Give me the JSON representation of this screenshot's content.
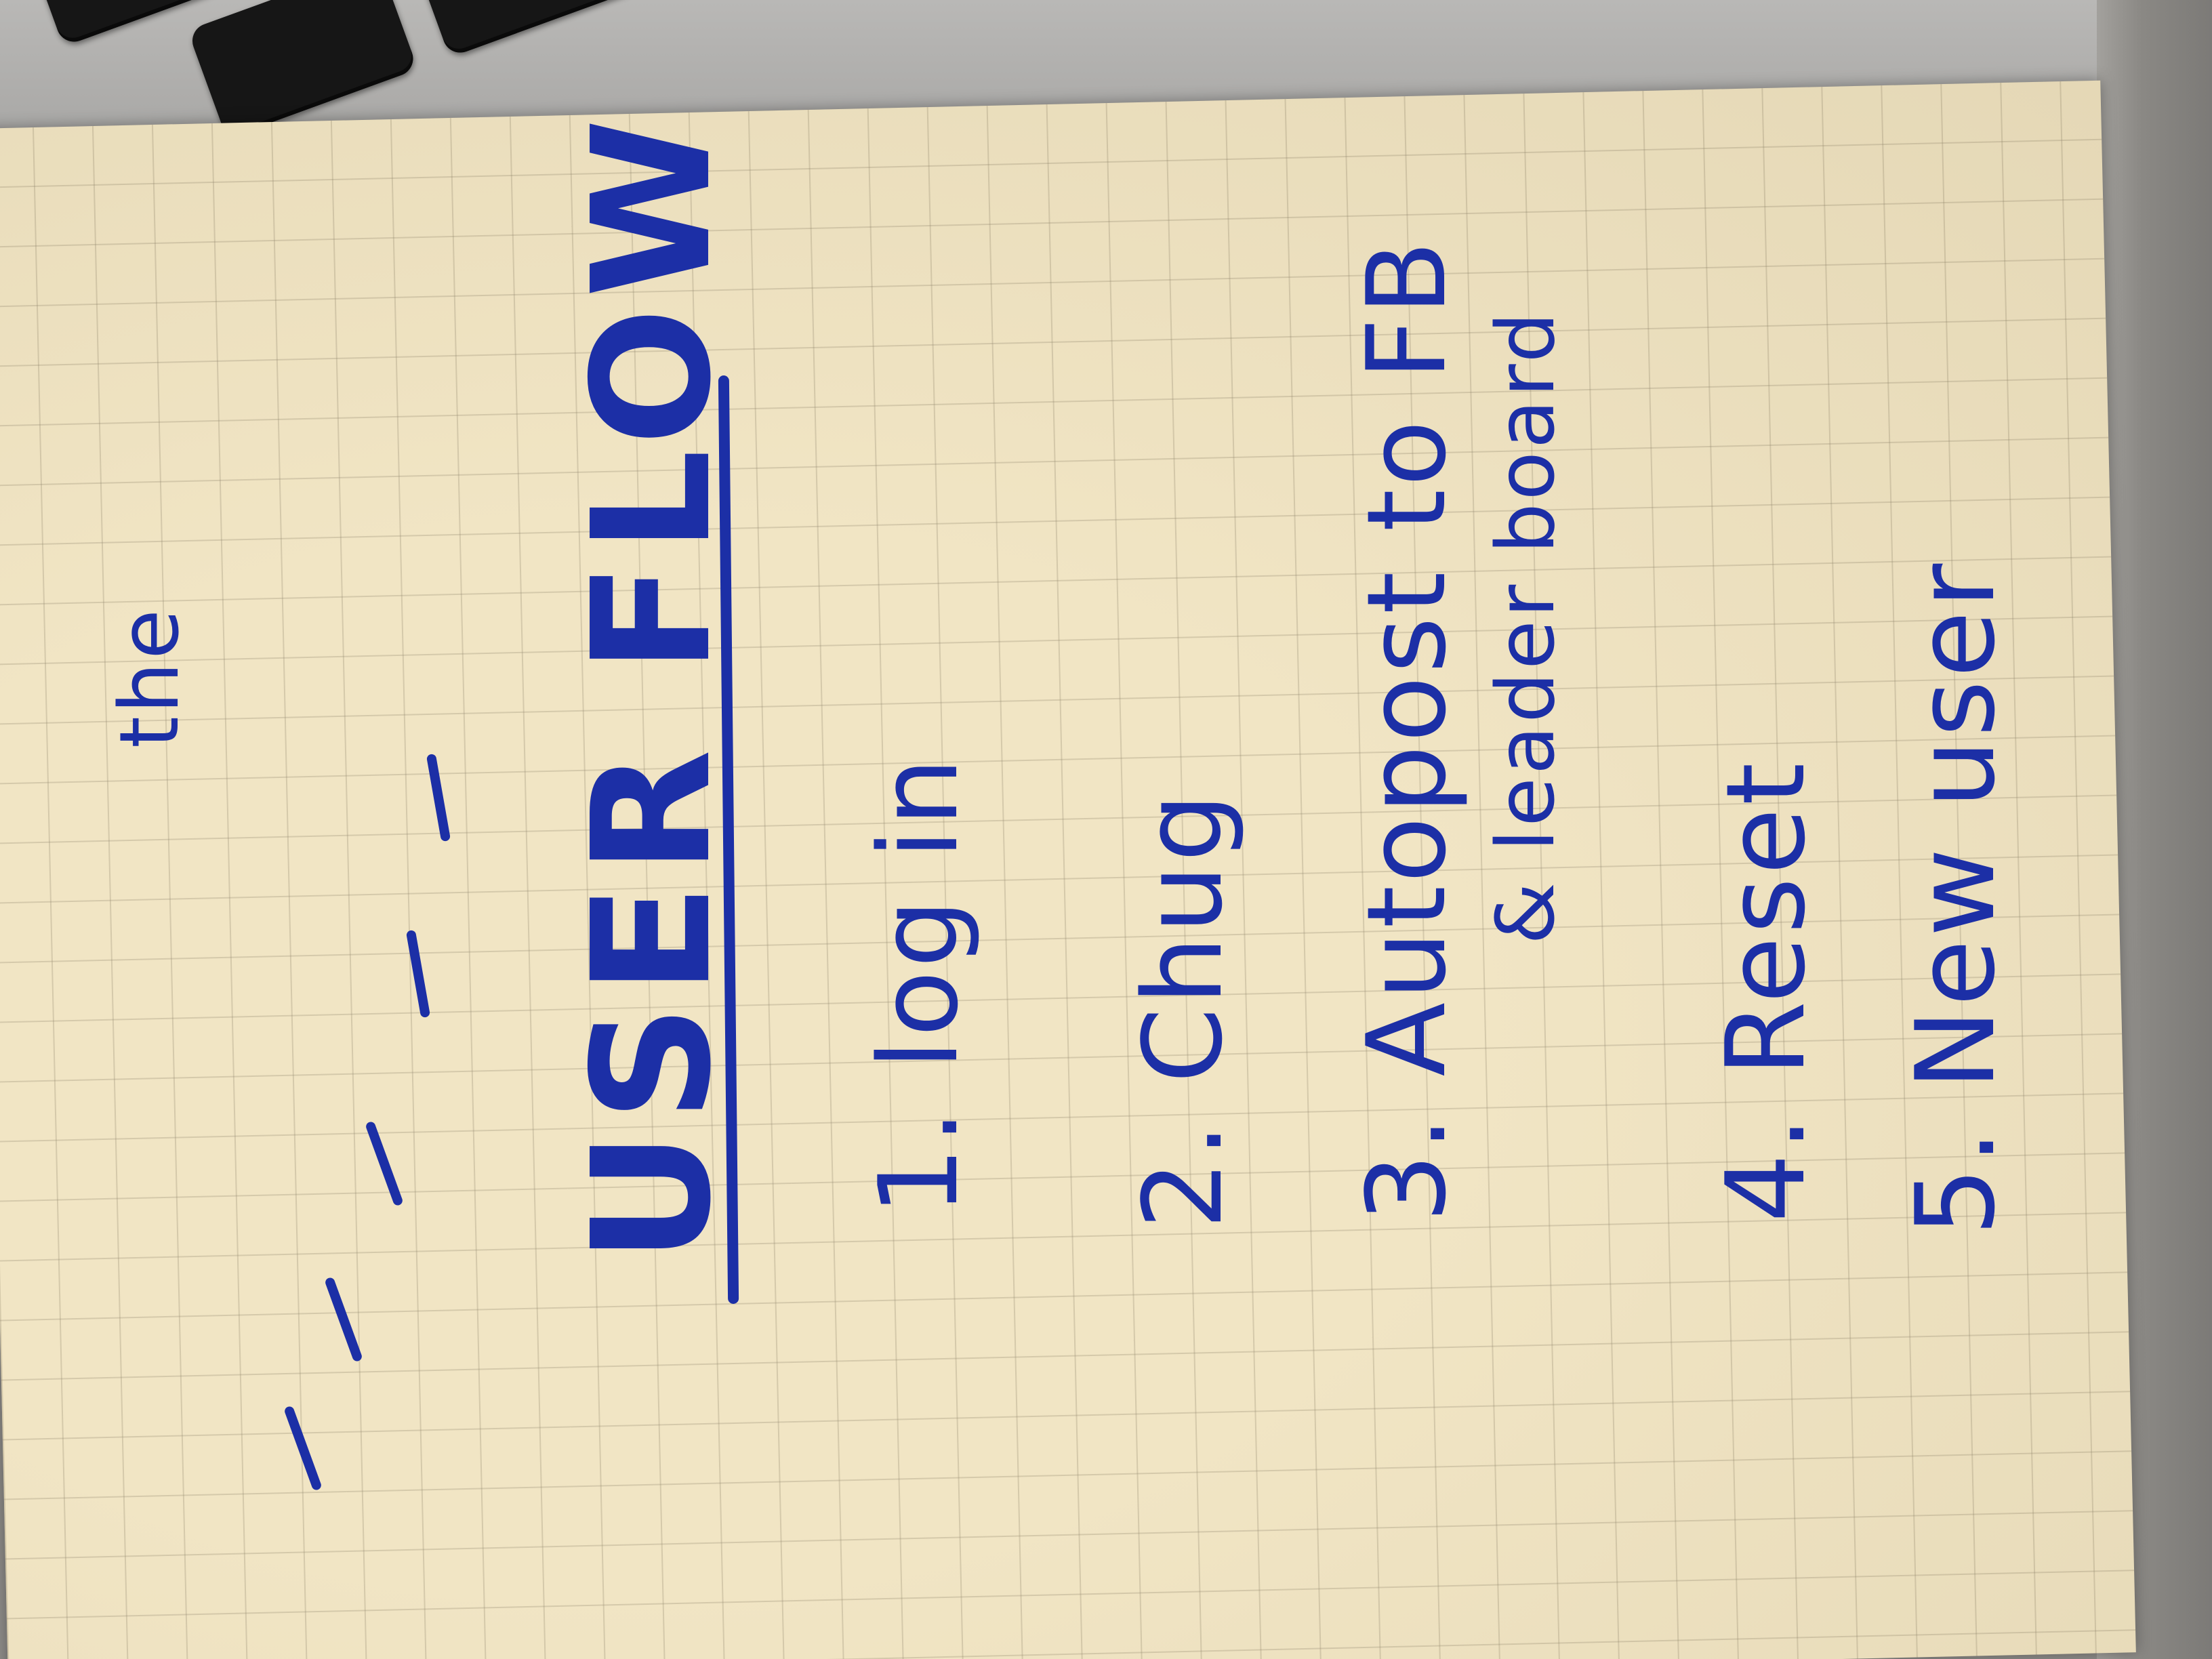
{
  "note": {
    "title": "USER FLOW",
    "steps": [
      {
        "number": "1.",
        "text": "log in"
      },
      {
        "number": "2.",
        "text": "Chug"
      },
      {
        "number": "3.",
        "text": "Autopost to FB",
        "sub": "& leader board"
      },
      {
        "number": "4.",
        "text": "Reset"
      },
      {
        "number": "5.",
        "text": "New user"
      }
    ],
    "margin_fragment": "the"
  },
  "colors": {
    "ink": "#1c2fa6",
    "paper": "#f1e5c4",
    "keys": "#161616",
    "laptop": "#b9b8b6"
  }
}
